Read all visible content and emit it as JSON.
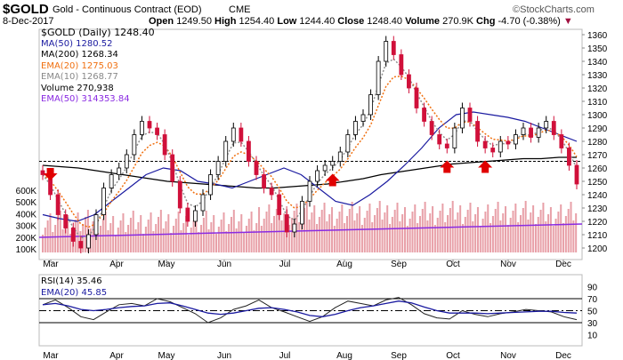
{
  "header": {
    "symbol": "$GOLD",
    "name": "Gold - Continuous Contract (EOD)",
    "exchange": "CME",
    "watermark": "©StockCharts.com",
    "date": "8-Dec-2017",
    "open_label": "Open",
    "open": "1249.50",
    "high_label": "High",
    "high": "1254.40",
    "low_label": "Low",
    "low": "1244.40",
    "close_label": "Close",
    "close": "1248.40",
    "volume_label": "Volume",
    "volume": "270.9K",
    "chg_label": "Chg",
    "chg": "-4.70 (-0.38%)"
  },
  "legend": {
    "price": "$GOLD (Daily) 1248.40",
    "ma50": "MA(50) 1280.52",
    "ma200": "MA(200) 1268.34",
    "ema20": "EMA(20) 1275.03",
    "ema10": "EMA(10) 1268.77",
    "volume": "Volume 270,938",
    "vema50": "EMA(50) 314353.84"
  },
  "rsi_legend": {
    "rsi": "RSI(14) 35.46",
    "ema": "EMA(20) 45.85"
  },
  "colors": {
    "up": "#000000",
    "down": "#d0103a",
    "ma50": "#1a1aa0",
    "ma200": "#000000",
    "ema20": "#f07010",
    "ema10": "#909090",
    "volume": "#e8a0a8",
    "vema": "#8a2be2",
    "arrow": "#e00000"
  },
  "chart_data": {
    "type": "candlestick",
    "x_labels": [
      "Mar",
      "Apr",
      "May",
      "Jun",
      "Jul",
      "Aug",
      "Sep",
      "Oct",
      "Nov",
      "Dec"
    ],
    "price_ticks": [
      1200,
      1210,
      1220,
      1230,
      1240,
      1250,
      1260,
      1270,
      1280,
      1290,
      1300,
      1310,
      1320,
      1330,
      1340,
      1350,
      1360
    ],
    "price_range": [
      1195,
      1365
    ],
    "volume_ticks": [
      "100K",
      "200K",
      "300K",
      "400K",
      "500K",
      "600K"
    ],
    "rsi_ticks": [
      10,
      30,
      50,
      70,
      90
    ],
    "resistance_level": 1265,
    "closes": [
      1255,
      1240,
      1225,
      1215,
      1205,
      1200,
      1210,
      1225,
      1245,
      1255,
      1260,
      1270,
      1285,
      1295,
      1290,
      1285,
      1270,
      1250,
      1230,
      1220,
      1228,
      1240,
      1255,
      1265,
      1280,
      1290,
      1280,
      1265,
      1255,
      1245,
      1240,
      1225,
      1212,
      1218,
      1235,
      1250,
      1258,
      1262,
      1265,
      1272,
      1285,
      1295,
      1300,
      1315,
      1340,
      1355,
      1345,
      1330,
      1320,
      1305,
      1295,
      1285,
      1278,
      1275,
      1290,
      1305,
      1295,
      1280,
      1275,
      1272,
      1280,
      1278,
      1285,
      1290,
      1283,
      1290,
      1295,
      1285,
      1275,
      1262,
      1248
    ],
    "ma200": [
      1262,
      1261,
      1260,
      1258,
      1256,
      1254,
      1252,
      1250,
      1249,
      1248,
      1247,
      1246,
      1245,
      1245,
      1246,
      1247,
      1248,
      1250,
      1252,
      1255,
      1257,
      1259,
      1261,
      1263,
      1264,
      1265,
      1266,
      1267,
      1267,
      1268,
      1268
    ],
    "ma50": [
      1225,
      1222,
      1220,
      1225,
      1235,
      1245,
      1255,
      1260,
      1258,
      1250,
      1248,
      1245,
      1250,
      1255,
      1260,
      1255,
      1245,
      1235,
      1232,
      1240,
      1250,
      1262,
      1275,
      1290,
      1300,
      1302,
      1300,
      1298,
      1295,
      1290,
      1285,
      1280
    ],
    "rsi": [
      60,
      68,
      55,
      40,
      35,
      48,
      60,
      62,
      58,
      70,
      65,
      55,
      45,
      30,
      38,
      52,
      58,
      68,
      55,
      48,
      40,
      32,
      40,
      55,
      66,
      62,
      58,
      68,
      72,
      60,
      45,
      38,
      36,
      50,
      44,
      40,
      45,
      48,
      52,
      50,
      48,
      40,
      35
    ],
    "rsi_ema": [
      60,
      62,
      58,
      52,
      50,
      52,
      55,
      57,
      58,
      62,
      63,
      58,
      52,
      46,
      44,
      46,
      50,
      54,
      55,
      52,
      48,
      42,
      40,
      44,
      50,
      55,
      58,
      62,
      66,
      63,
      56,
      50,
      46,
      46,
      46,
      45,
      46,
      47,
      48,
      49,
      49,
      47,
      46
    ],
    "annotations": [
      {
        "type": "down-arrow",
        "index": 1
      },
      {
        "type": "up-arrow",
        "index": 38
      },
      {
        "type": "up-arrow",
        "index": 53
      },
      {
        "type": "up-arrow",
        "index": 58
      }
    ]
  }
}
